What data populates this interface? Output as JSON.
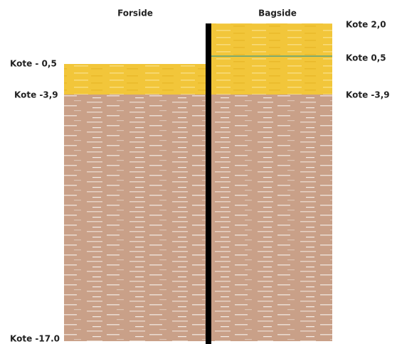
{
  "headers": {
    "front": "Forside",
    "back": "Bagside"
  },
  "levels": {
    "back": [
      "Kote 2,0",
      "Kote 0,5",
      "Kote -3,9"
    ],
    "front": [
      "Kote - 0,5",
      "Kote -3,9",
      "Kote -17.0"
    ]
  }
}
